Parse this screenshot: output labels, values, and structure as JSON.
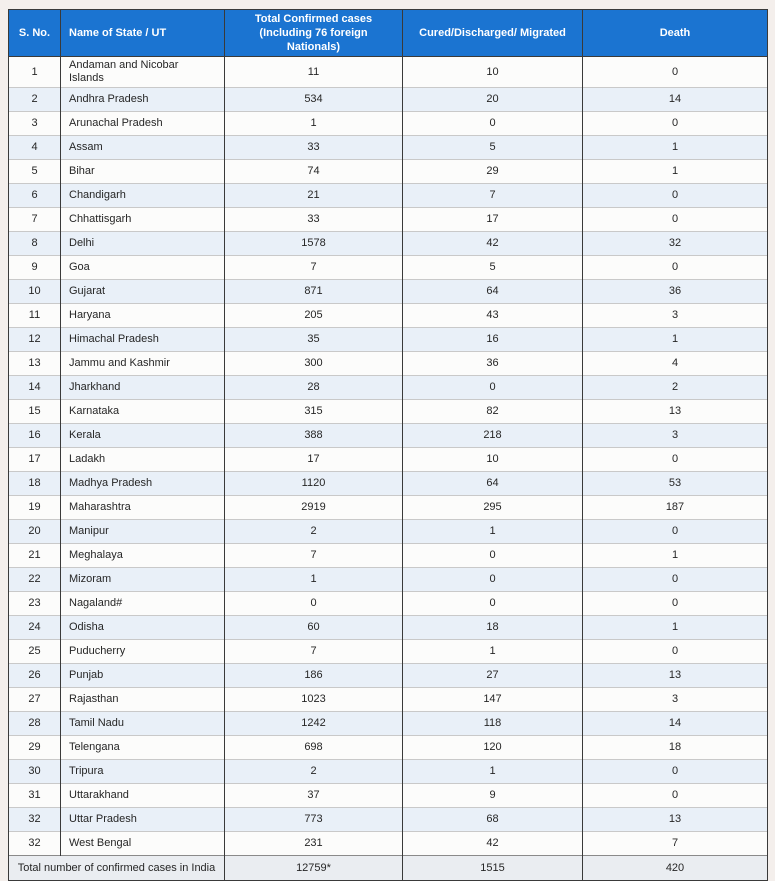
{
  "chart_data": {
    "type": "table",
    "columns": [
      "S. No.",
      "Name of State / UT",
      "Total Confirmed cases (Including 76 foreign Nationals)",
      "Cured/Discharged/ Migrated",
      "Death"
    ],
    "rows": [
      [
        "1",
        "Andaman and Nicobar Islands",
        "11",
        "10",
        "0"
      ],
      [
        "2",
        "Andhra Pradesh",
        "534",
        "20",
        "14"
      ],
      [
        "3",
        "Arunachal Pradesh",
        "1",
        "0",
        "0"
      ],
      [
        "4",
        "Assam",
        "33",
        "5",
        "1"
      ],
      [
        "5",
        "Bihar",
        "74",
        "29",
        "1"
      ],
      [
        "6",
        "Chandigarh",
        "21",
        "7",
        "0"
      ],
      [
        "7",
        "Chhattisgarh",
        "33",
        "17",
        "0"
      ],
      [
        "8",
        "Delhi",
        "1578",
        "42",
        "32"
      ],
      [
        "9",
        "Goa",
        "7",
        "5",
        "0"
      ],
      [
        "10",
        "Gujarat",
        "871",
        "64",
        "36"
      ],
      [
        "11",
        "Haryana",
        "205",
        "43",
        "3"
      ],
      [
        "12",
        "Himachal Pradesh",
        "35",
        "16",
        "1"
      ],
      [
        "13",
        "Jammu and Kashmir",
        "300",
        "36",
        "4"
      ],
      [
        "14",
        "Jharkhand",
        "28",
        "0",
        "2"
      ],
      [
        "15",
        "Karnataka",
        "315",
        "82",
        "13"
      ],
      [
        "16",
        "Kerala",
        "388",
        "218",
        "3"
      ],
      [
        "17",
        "Ladakh",
        "17",
        "10",
        "0"
      ],
      [
        "18",
        "Madhya Pradesh",
        "1120",
        "64",
        "53"
      ],
      [
        "19",
        "Maharashtra",
        "2919",
        "295",
        "187"
      ],
      [
        "20",
        "Manipur",
        "2",
        "1",
        "0"
      ],
      [
        "21",
        "Meghalaya",
        "7",
        "0",
        "1"
      ],
      [
        "22",
        "Mizoram",
        "1",
        "0",
        "0"
      ],
      [
        "23",
        "Nagaland#",
        "0",
        "0",
        "0"
      ],
      [
        "24",
        "Odisha",
        "60",
        "18",
        "1"
      ],
      [
        "25",
        "Puducherry",
        "7",
        "1",
        "0"
      ],
      [
        "26",
        "Punjab",
        "186",
        "27",
        "13"
      ],
      [
        "27",
        "Rajasthan",
        "1023",
        "147",
        "3"
      ],
      [
        "28",
        "Tamil Nadu",
        "1242",
        "118",
        "14"
      ],
      [
        "29",
        "Telengana",
        "698",
        "120",
        "18"
      ],
      [
        "30",
        "Tripura",
        "2",
        "1",
        "0"
      ],
      [
        "31",
        "Uttarakhand",
        "37",
        "9",
        "0"
      ],
      [
        "32",
        "Uttar Pradesh",
        "773",
        "68",
        "13"
      ],
      [
        "32",
        "West Bengal",
        "231",
        "42",
        "7"
      ]
    ],
    "footer": {
      "label": "Total number of confirmed cases in India",
      "confirmed": "12759*",
      "cured": "1515",
      "death": "420"
    }
  },
  "colors": {
    "header_bg": "#1b74d1",
    "header_text": "#ffffff",
    "row_bg": "#fcfcfb",
    "row_alt_bg": "#e9f0f8",
    "footer_bg": "#eaedf1",
    "border_dark": "#3a3a3a",
    "border_light": "#c9c9c9",
    "text": "#262626",
    "page_bg": "#f4efec"
  }
}
